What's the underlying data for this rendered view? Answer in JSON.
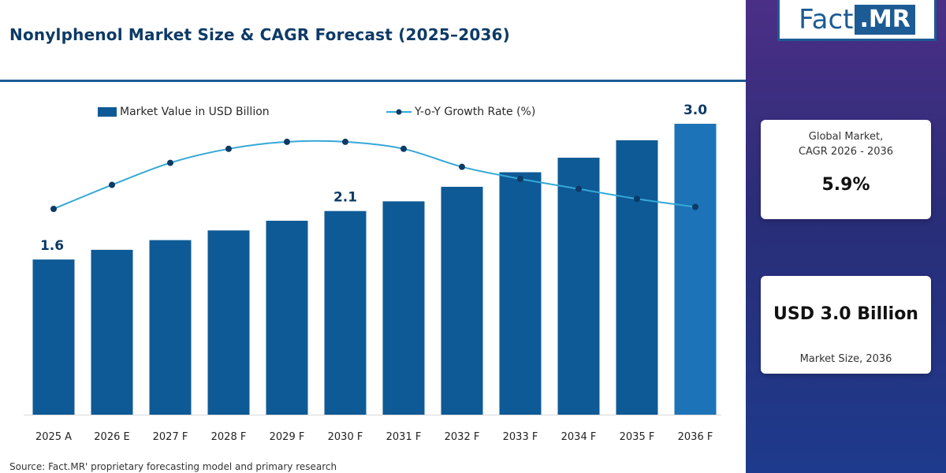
{
  "title": "Nonylphenol Market Size & CAGR Forecast (2025–2036)",
  "source": "Source: Fact.MR' proprietary forecasting model and primary research",
  "logo": {
    "part1": "Fact",
    "part2": ".MR"
  },
  "cards": {
    "cagr_label_line1": "Global Market,",
    "cagr_label_line2": "CAGR 2026 - 2036",
    "cagr_value": "5.9%",
    "size_value": "USD 3.0 Billion",
    "size_label": "Market Size, 2036"
  },
  "colors": {
    "bar": "#0e5a96",
    "bar_last": "#1c73b8",
    "line": "#35a8d6",
    "title": "#0d3a66"
  },
  "chart_data": {
    "type": "bar",
    "categories": [
      "2025 A",
      "2026 E",
      "2027 F",
      "2028 F",
      "2029 F",
      "2030 F",
      "2031 F",
      "2032 F",
      "2033 F",
      "2034 F",
      "2035 F",
      "2036 F"
    ],
    "series": [
      {
        "name": "Market Value in USD Billion",
        "values": [
          1.6,
          1.7,
          1.8,
          1.9,
          2.0,
          2.1,
          2.2,
          2.35,
          2.5,
          2.65,
          2.83,
          3.0
        ]
      },
      {
        "name": "Y-o-Y Growth Rate (%)",
        "type": "line",
        "values": [
          5.0,
          6.2,
          7.3,
          8.0,
          8.35,
          8.35,
          8.0,
          7.1,
          6.5,
          6.0,
          5.5,
          5.1
        ]
      }
    ],
    "data_labels": {
      "0": "1.6",
      "5": "2.1",
      "11": "3.0"
    },
    "legend": "top",
    "grid": false
  }
}
